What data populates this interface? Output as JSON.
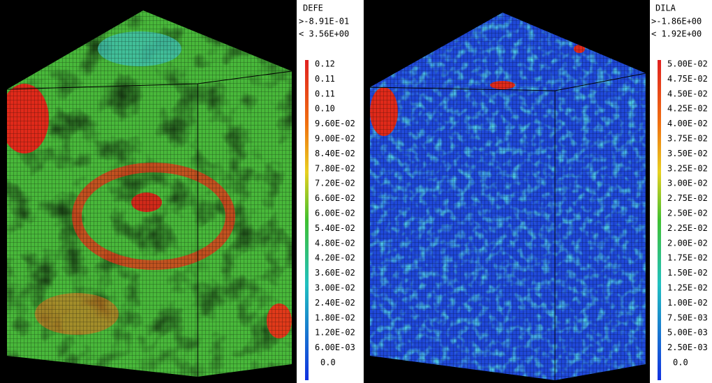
{
  "panels": [
    {
      "title": "DEFE",
      "min": ">-8.91E-01",
      "max": "< 3.56E+00",
      "labels": [
        "0.12",
        "0.11",
        "0.11",
        "0.10",
        "9.60E-02",
        "9.00E-02",
        "8.40E-02",
        "7.80E-02",
        "7.20E-02",
        "6.60E-02",
        "6.00E-02",
        "5.40E-02",
        "4.80E-02",
        "4.20E-02",
        "3.60E-02",
        "3.00E-02",
        "2.40E-02",
        "1.80E-02",
        "1.20E-02",
        "6.00E-03",
        "0.0"
      ]
    },
    {
      "title": "DILA",
      "min": ">-1.86E+00",
      "max": "< 1.92E+00",
      "labels": [
        "5.00E-02",
        "4.75E-02",
        "4.50E-02",
        "4.25E-02",
        "4.00E-02",
        "3.75E-02",
        "3.50E-02",
        "3.25E-02",
        "3.00E-02",
        "2.75E-02",
        "2.50E-02",
        "2.25E-02",
        "2.00E-02",
        "1.75E-02",
        "1.50E-02",
        "1.25E-02",
        "1.00E-02",
        "7.50E-03",
        "5.00E-03",
        "2.50E-03",
        "0.0"
      ]
    }
  ]
}
